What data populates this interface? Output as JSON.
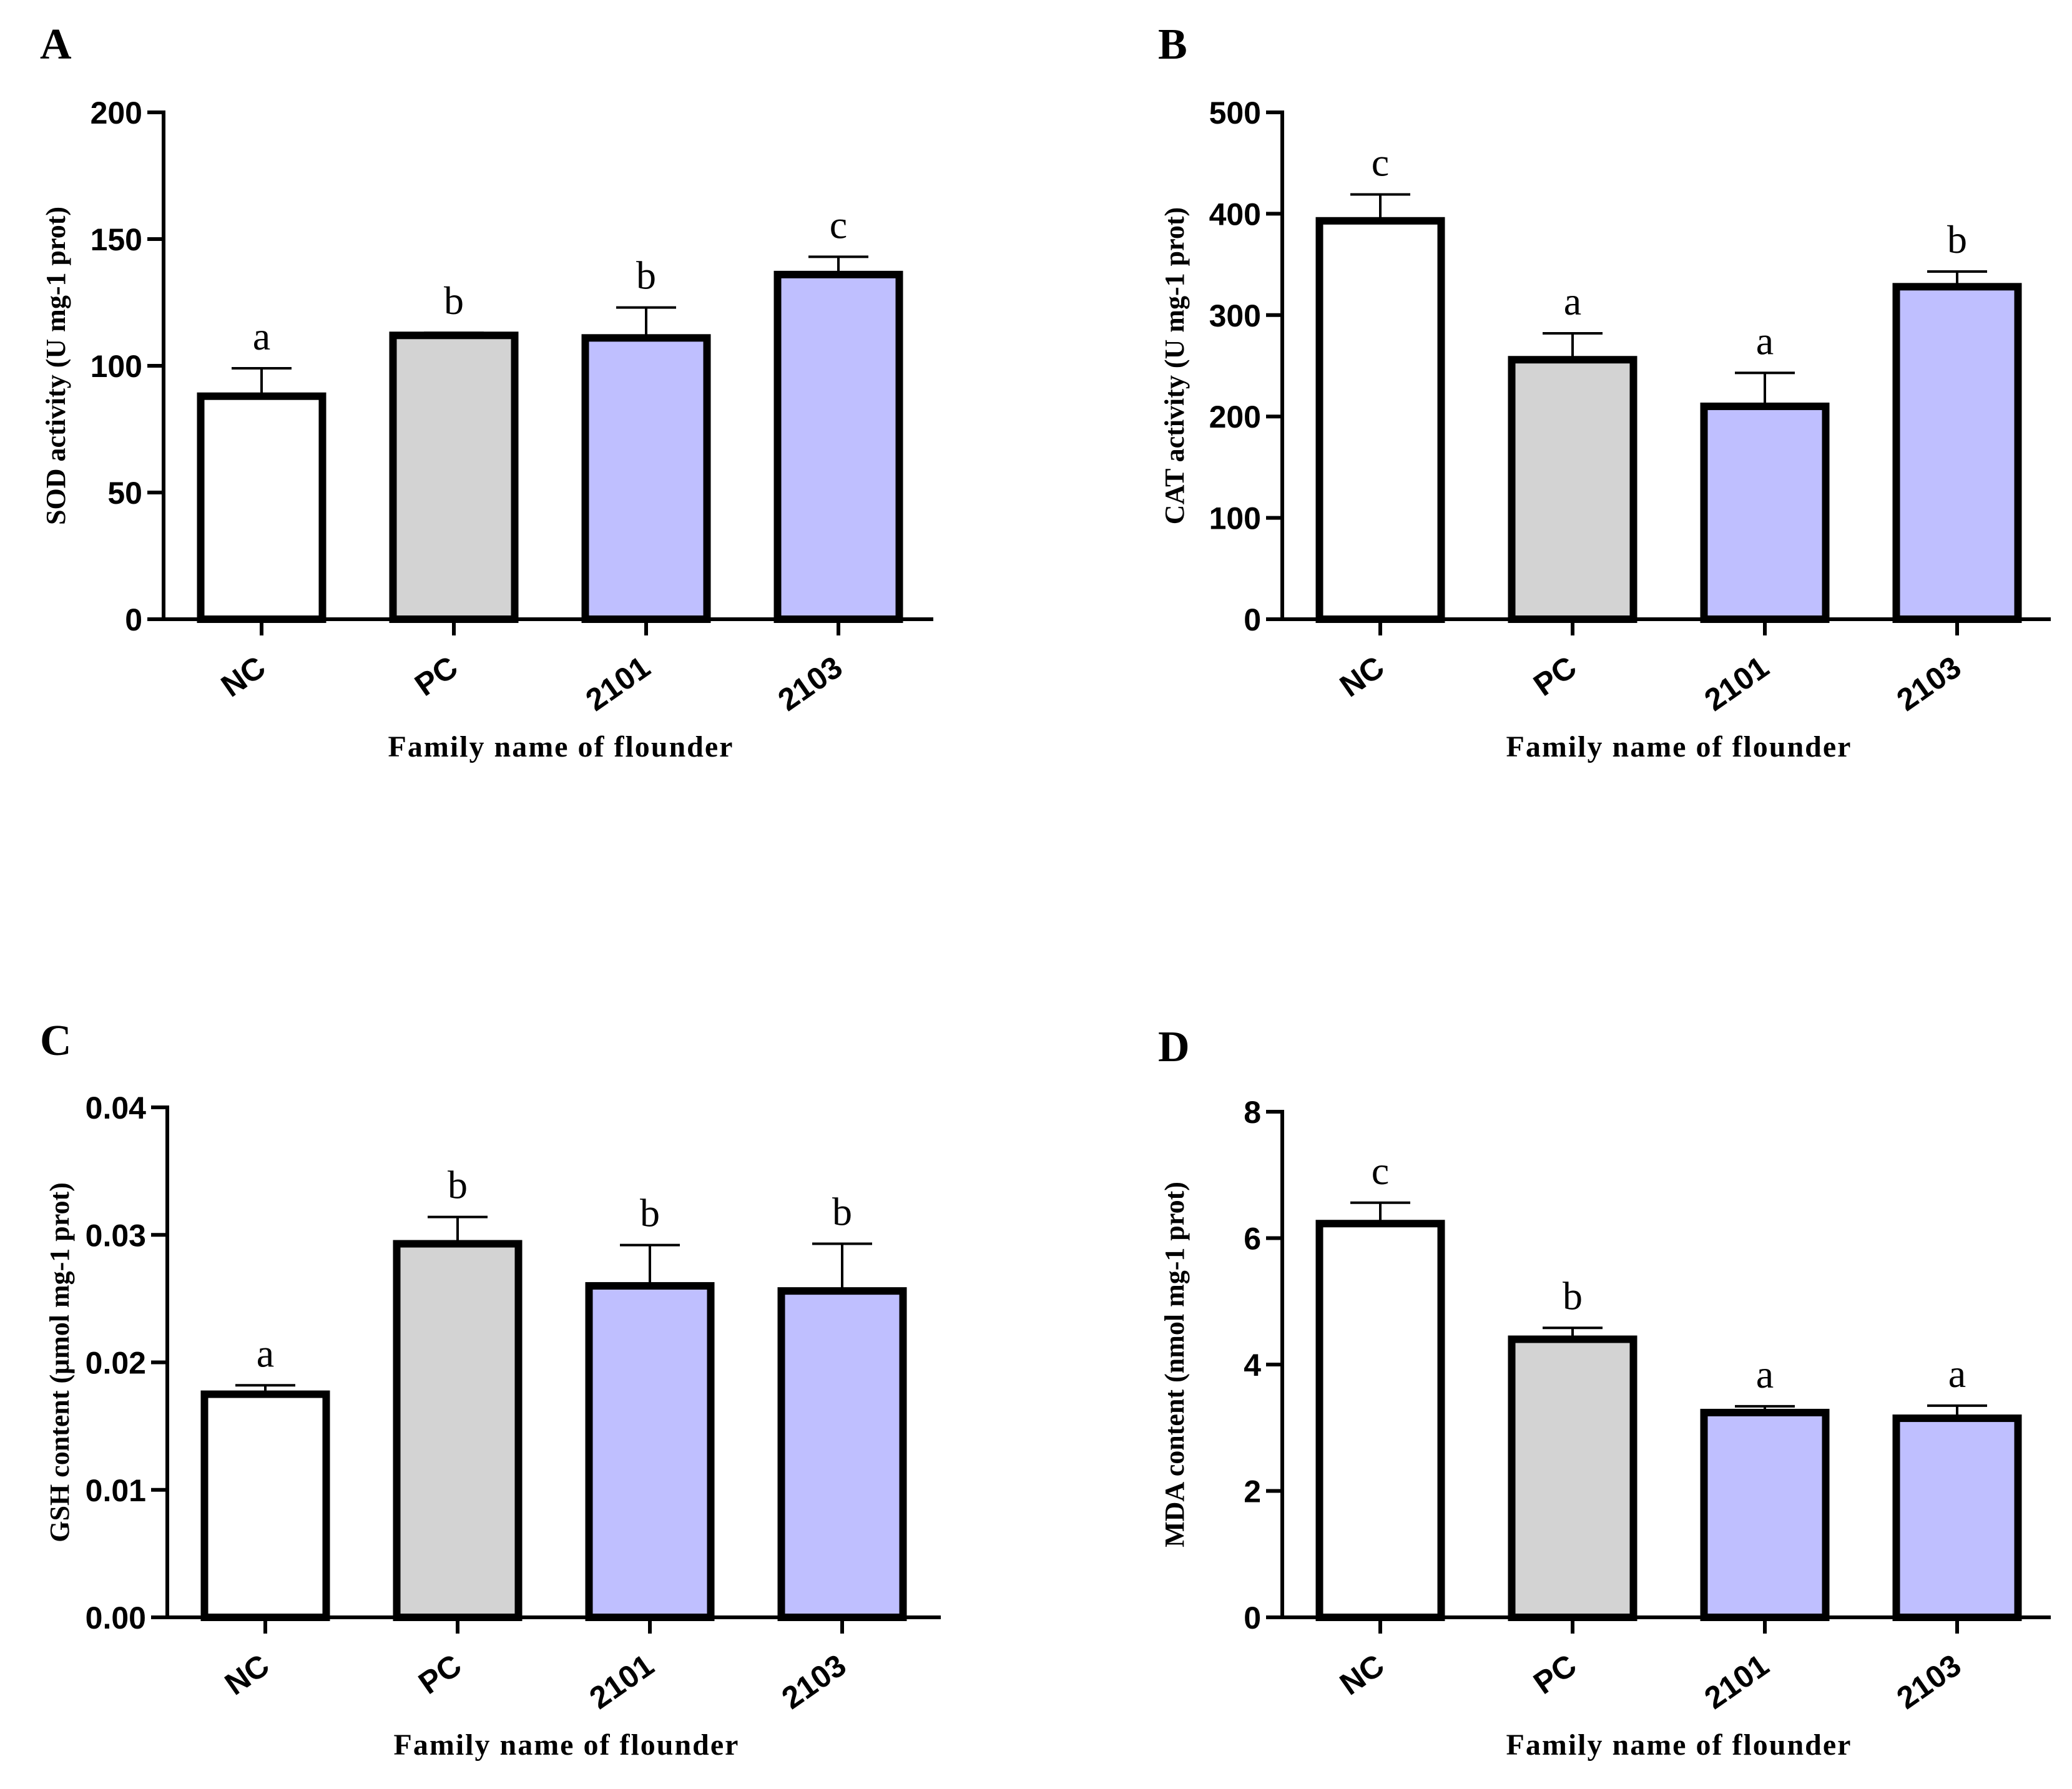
{
  "bar_colors": [
    "#ffffff",
    "#d3d3d3",
    "#bfbfff",
    "#bfbfff"
  ],
  "chart_data": [
    {
      "type": "bar",
      "panel": "A",
      "title": "",
      "xlabel": "Family name of flounder",
      "ylabel": "SOD activity (U mg-1 prot)",
      "categories": [
        "NC",
        "PC",
        "2101",
        "2103"
      ],
      "values": [
        88,
        112,
        111,
        136
      ],
      "errors": [
        11,
        1,
        12,
        7
      ],
      "letters": [
        "a",
        "b",
        "b",
        "c"
      ],
      "ylim": [
        0,
        200
      ],
      "yticks": [
        0,
        50,
        100,
        150,
        200
      ],
      "ytick_labels": [
        "0",
        "50",
        "100",
        "150",
        "200"
      ]
    },
    {
      "type": "bar",
      "panel": "B",
      "title": "",
      "xlabel": "Family name of flounder",
      "ylabel": "CAT activity (U mg-1 prot)",
      "categories": [
        "NC",
        "PC",
        "2101",
        "2103"
      ],
      "values": [
        393,
        256,
        210,
        328
      ],
      "errors": [
        26,
        26,
        33,
        15
      ],
      "letters": [
        "c",
        "a",
        "a",
        "b"
      ],
      "ylim": [
        0,
        500
      ],
      "yticks": [
        0,
        100,
        200,
        300,
        400,
        500
      ],
      "ytick_labels": [
        "0",
        "100",
        "200",
        "300",
        "400",
        "500"
      ]
    },
    {
      "type": "bar",
      "panel": "C",
      "title": "",
      "xlabel": "Family name of flounder",
      "ylabel": "GSH content (μmol mg-1 prot)",
      "categories": [
        "NC",
        "PC",
        "2101",
        "2103"
      ],
      "values": [
        0.0175,
        0.0293,
        0.026,
        0.0256
      ],
      "errors": [
        0.0007,
        0.0021,
        0.0032,
        0.0037
      ],
      "letters": [
        "a",
        "b",
        "b",
        "b"
      ],
      "ylim": [
        0,
        0.04
      ],
      "yticks": [
        0,
        0.01,
        0.02,
        0.03,
        0.04
      ],
      "ytick_labels": [
        "0.00",
        "0.01",
        "0.02",
        "0.03",
        "0.04"
      ]
    },
    {
      "type": "bar",
      "panel": "D",
      "title": "",
      "xlabel": "Family name of flounder",
      "ylabel": "MDA content (nmol mg-1 prot)",
      "categories": [
        "NC",
        "PC",
        "2101",
        "2103"
      ],
      "values": [
        6.23,
        4.4,
        3.24,
        3.15
      ],
      "errors": [
        0.33,
        0.18,
        0.1,
        0.2
      ],
      "letters": [
        "c",
        "b",
        "a",
        "a"
      ],
      "ylim": [
        0,
        8
      ],
      "yticks": [
        0,
        2,
        4,
        6,
        8
      ],
      "ytick_labels": [
        "0",
        "2",
        "4",
        "6",
        "8"
      ]
    }
  ]
}
